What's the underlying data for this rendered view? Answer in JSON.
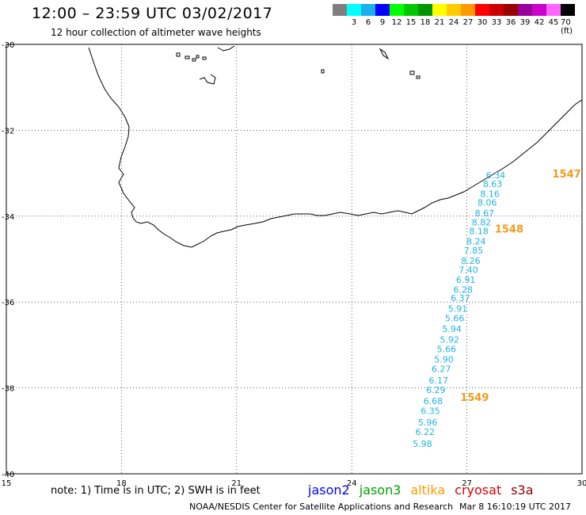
{
  "header": {
    "title": "12:00 – 23:59 UTC 03/02/2017",
    "subtitle": "12 hour collection of altimeter wave heights"
  },
  "legend": {
    "colors": [
      "#7f7f7f",
      "#00ffff",
      "#1ab0f0",
      "#0000ff",
      "#00ff00",
      "#00c800",
      "#009600",
      "#ffff00",
      "#ffcc00",
      "#ff9900",
      "#ff0000",
      "#cc0000",
      "#990000",
      "#990099",
      "#cc00cc",
      "#ff66ff",
      "#000000"
    ],
    "labels": [
      "3",
      "6",
      "9",
      "12",
      "15",
      "18",
      "21",
      "24",
      "27",
      "30",
      "33",
      "36",
      "39",
      "42",
      "45",
      "70 (ft)"
    ]
  },
  "axes": {
    "lat_labels": [
      "-30",
      "-32",
      "-34",
      "-36",
      "-38",
      "-40"
    ],
    "lon_labels": [
      "15",
      "18",
      "21",
      "24",
      "27",
      "30"
    ]
  },
  "track": {
    "points": [
      {
        "lon": 27.75,
        "lat": -33.12,
        "swh": "6.34"
      },
      {
        "lon": 27.67,
        "lat": -33.32,
        "swh": "8.63"
      },
      {
        "lon": 27.6,
        "lat": -33.55,
        "swh": "8.16"
      },
      {
        "lon": 27.53,
        "lat": -33.75,
        "swh": "8.06"
      },
      {
        "lon": 27.46,
        "lat": -34.0,
        "swh": "8.67"
      },
      {
        "lon": 27.38,
        "lat": -34.22,
        "swh": "8.82"
      },
      {
        "lon": 27.31,
        "lat": -34.42,
        "swh": "8.18"
      },
      {
        "lon": 27.24,
        "lat": -34.66,
        "swh": "8.24"
      },
      {
        "lon": 27.17,
        "lat": -34.87,
        "swh": "7.85"
      },
      {
        "lon": 27.1,
        "lat": -35.11,
        "swh": "8.26"
      },
      {
        "lon": 27.04,
        "lat": -35.32,
        "swh": "7.40"
      },
      {
        "lon": 26.97,
        "lat": -35.55,
        "swh": "6.91"
      },
      {
        "lon": 26.9,
        "lat": -35.78,
        "swh": "6.28"
      },
      {
        "lon": 26.83,
        "lat": -35.98,
        "swh": "6.37"
      },
      {
        "lon": 26.76,
        "lat": -36.23,
        "swh": "5.91"
      },
      {
        "lon": 26.68,
        "lat": -36.45,
        "swh": "5.66"
      },
      {
        "lon": 26.61,
        "lat": -36.7,
        "swh": "5.94"
      },
      {
        "lon": 26.55,
        "lat": -36.95,
        "swh": "5.92"
      },
      {
        "lon": 26.47,
        "lat": -37.17,
        "swh": "5.66"
      },
      {
        "lon": 26.4,
        "lat": -37.41,
        "swh": "5.90"
      },
      {
        "lon": 26.33,
        "lat": -37.63,
        "swh": "6.27"
      },
      {
        "lon": 26.26,
        "lat": -37.9,
        "swh": "6.17"
      },
      {
        "lon": 26.19,
        "lat": -38.12,
        "swh": "6.29"
      },
      {
        "lon": 26.12,
        "lat": -38.38,
        "swh": "6.68"
      },
      {
        "lon": 26.05,
        "lat": -38.61,
        "swh": "6.35"
      },
      {
        "lon": 25.98,
        "lat": -38.87,
        "swh": "5.96"
      },
      {
        "lon": 25.91,
        "lat": -39.1,
        "swh": "6.22"
      },
      {
        "lon": 25.84,
        "lat": -39.37,
        "swh": "5.98"
      }
    ],
    "color": "#1fb4e6",
    "pass_labels": [
      {
        "lon": 29.6,
        "lat": -33.1,
        "text": "1547"
      },
      {
        "lon": 28.1,
        "lat": -34.38,
        "text": "1548"
      },
      {
        "lon": 27.2,
        "lat": -38.3,
        "text": "1549"
      }
    ],
    "pass_color": "#f39a1a"
  },
  "footer": {
    "note": "note: 1) Time is in UTC; 2) SWH is in feet",
    "satellites": [
      {
        "name": "jason2",
        "color": "#0000ff"
      },
      {
        "name": "jason3",
        "color": "#00a000"
      },
      {
        "name": "altika",
        "color": "#ff9900"
      },
      {
        "name": "cryosat",
        "color": "#dd0000"
      },
      {
        "name": "s3a",
        "color": "#8b0000"
      }
    ],
    "credit": "NOAA/NESDIS Center for Satellite Applications and Research",
    "timestamp": "Mar  8 16:10:19 UTC 2017"
  }
}
